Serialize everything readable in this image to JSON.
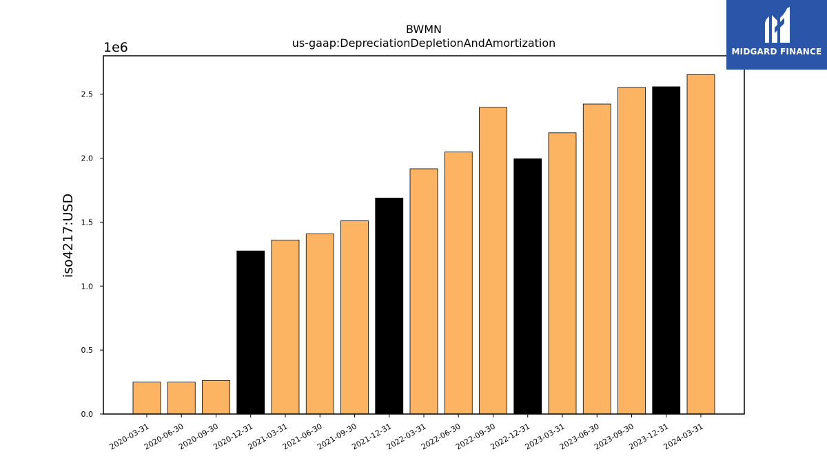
{
  "chart_data": {
    "type": "bar",
    "title": "BWMN",
    "subtitle": "us-gaap:DepreciationDepletionAndAmortization",
    "xlabel": "",
    "ylabel": "iso4217:USD",
    "y_offset_label": "1e6",
    "ylim": [
      0,
      2800000
    ],
    "y_ticks": [
      "0.0",
      "0.5",
      "1.0",
      "1.5",
      "2.0",
      "2.5"
    ],
    "y_tick_values": [
      0,
      500000,
      1000000,
      1500000,
      2000000,
      2500000
    ],
    "grid": false,
    "categories": [
      "2020-03-31",
      "2020-06-30",
      "2020-09-30",
      "2020-12-31",
      "2021-03-31",
      "2021-06-30",
      "2021-09-30",
      "2021-12-31",
      "2022-03-31",
      "2022-06-30",
      "2022-09-30",
      "2022-12-31",
      "2023-03-31",
      "2023-06-30",
      "2023-09-30",
      "2023-12-31",
      "2024-03-31"
    ],
    "values": [
      250000,
      250000,
      262000,
      1275000,
      1360000,
      1408000,
      1510000,
      1688000,
      1917000,
      2048000,
      2397000,
      1995000,
      2198000,
      2423000,
      2553000,
      2558000,
      2653000
    ],
    "bar_colors": [
      "#fdb462",
      "#fdb462",
      "#fdb462",
      "#000000",
      "#fdb462",
      "#fdb462",
      "#fdb462",
      "#000000",
      "#fdb462",
      "#fdb462",
      "#fdb462",
      "#000000",
      "#fdb462",
      "#fdb462",
      "#fdb462",
      "#000000",
      "#fdb462"
    ]
  },
  "logo": {
    "text": "MIDGARD FINANCE",
    "background": "#2a55a8",
    "icon": "midgard-m-logo-icon"
  }
}
